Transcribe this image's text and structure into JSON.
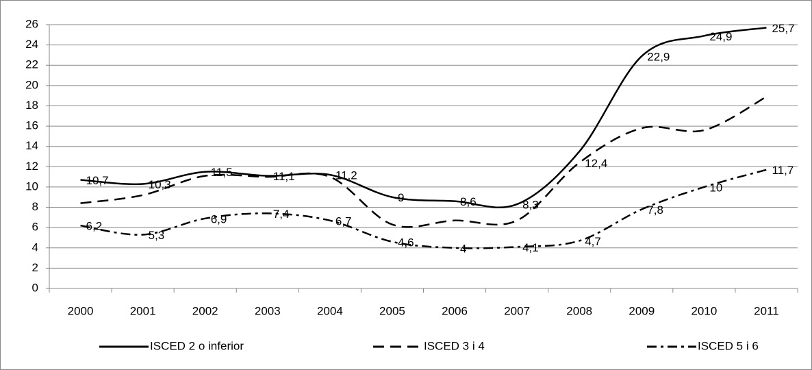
{
  "chart_data": {
    "type": "line",
    "categories": [
      "2000",
      "2001",
      "2002",
      "2003",
      "2004",
      "2005",
      "2006",
      "2007",
      "2008",
      "2009",
      "2010",
      "2011"
    ],
    "series": [
      {
        "name": "ISCED 2 o inferior",
        "color": "#000000",
        "dash": "none",
        "values": [
          10.7,
          10.3,
          11.5,
          11.1,
          11.2,
          9,
          8.6,
          8.3,
          13.5,
          22.9,
          24.9,
          25.7
        ],
        "value_labels": [
          "10,7",
          "10,3",
          "11,5",
          "11,1",
          "11,2",
          "9",
          "8,6",
          "8,3",
          null,
          "22,9",
          "24,9",
          "25,7"
        ]
      },
      {
        "name": "ISCED 3 i 4",
        "color": "#000000",
        "dash": "16 9",
        "values": [
          8.4,
          9.2,
          11.1,
          11,
          11,
          6.3,
          6.7,
          6.7,
          12.4,
          15.8,
          15.6,
          18.9
        ],
        "value_labels": [
          null,
          null,
          null,
          null,
          null,
          null,
          null,
          null,
          "12,4",
          null,
          null,
          null
        ]
      },
      {
        "name": "ISCED 5 i 6",
        "color": "#000000",
        "dash": "14 6 4 6",
        "values": [
          6.2,
          5.3,
          6.9,
          7.4,
          6.7,
          4.6,
          4,
          4.1,
          4.7,
          7.8,
          10,
          11.7
        ],
        "value_labels": [
          "6,2",
          "5,3",
          "6,9",
          "7,4",
          "6,7",
          "4,6",
          "4",
          "4,1",
          "4,7",
          "7,8",
          "10",
          "11,7"
        ]
      }
    ],
    "ylim": [
      0,
      26
    ],
    "yticks": [
      0,
      2,
      4,
      6,
      8,
      10,
      12,
      14,
      16,
      18,
      20,
      22,
      24,
      26
    ],
    "grid": true,
    "legend": "bottom"
  }
}
